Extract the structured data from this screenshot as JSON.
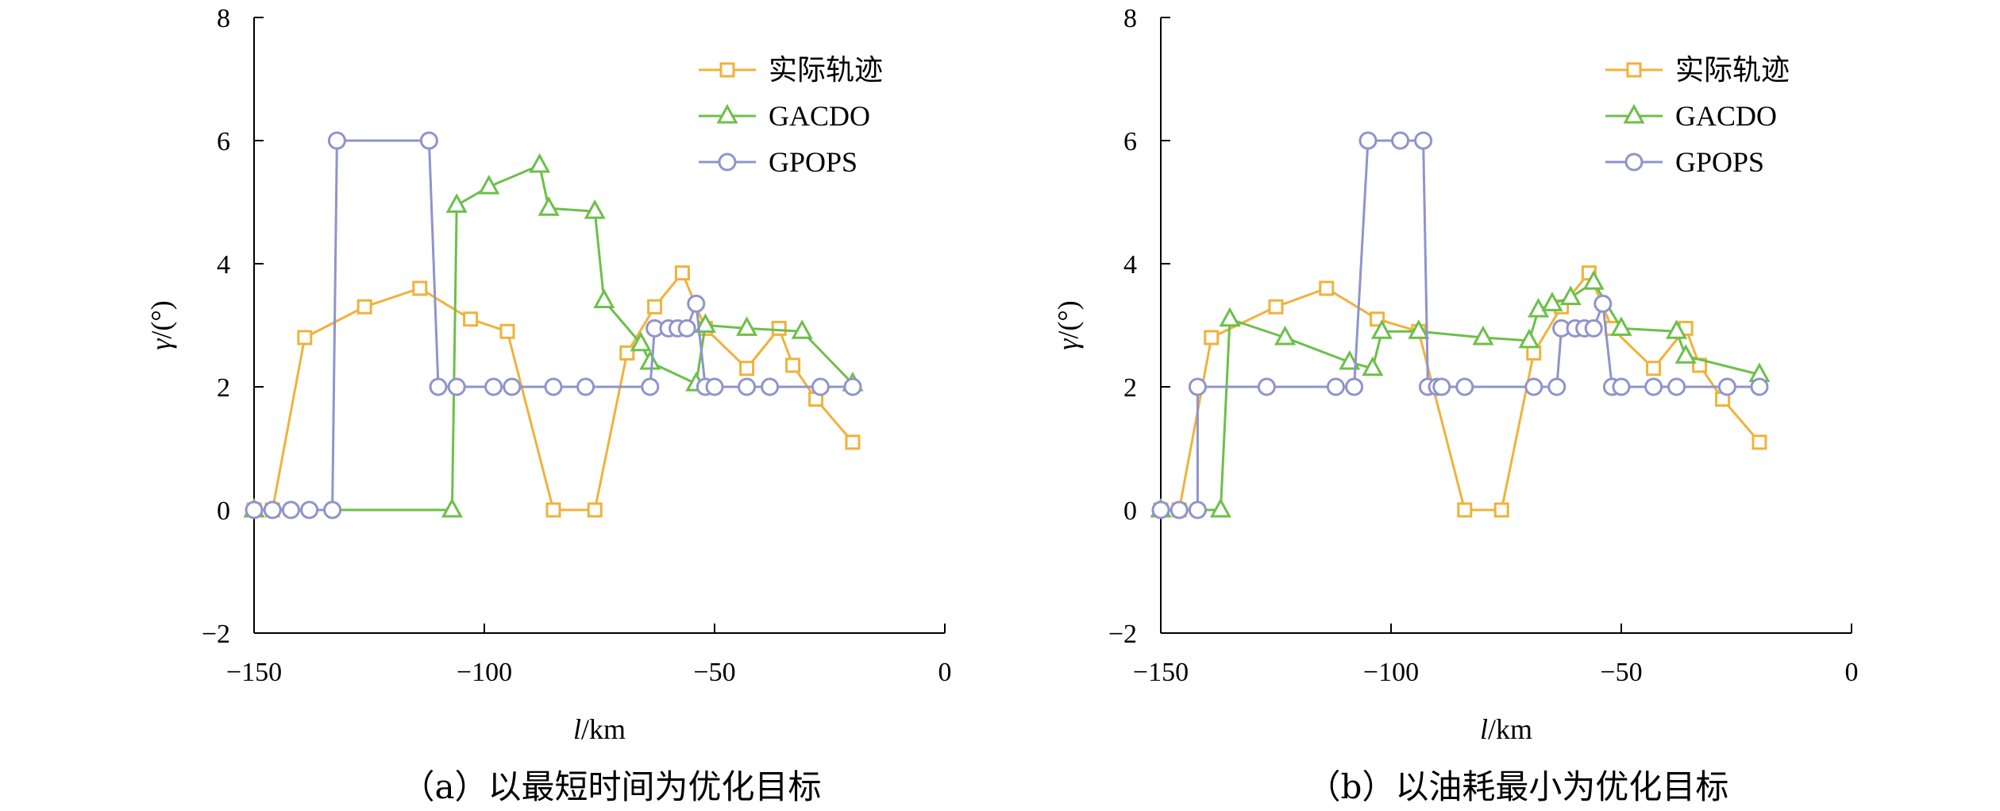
{
  "colors": {
    "actual": "#f0b23c",
    "gacdo": "#6dbf4b",
    "gpops": "#8f94cc"
  },
  "panels": [
    {
      "caption": "（a）以最短时间为优化目标",
      "xlabel_var": "l",
      "xlabel_unit": "/km",
      "ylabel_var": "γ",
      "ylabel_unit": "/(°)"
    },
    {
      "caption": "（b）以油耗最小为优化目标",
      "xlabel_var": "l",
      "xlabel_unit": "/km",
      "ylabel_var": "γ",
      "ylabel_unit": "/(°)"
    }
  ],
  "chart_data": [
    {
      "type": "line",
      "xlim": [
        -150,
        0
      ],
      "ylim": [
        -2,
        8
      ],
      "xticks": [
        -150,
        -100,
        -50,
        0
      ],
      "yticks": [
        -2,
        0,
        2,
        4,
        6,
        8
      ],
      "xtick_labels": [
        "−150",
        "−100",
        "−50",
        "0"
      ],
      "ytick_labels": [
        "−2",
        "0",
        "2",
        "4",
        "6",
        "8"
      ],
      "legend_position": "top-right",
      "grid": false,
      "series": [
        {
          "name": "实际轨迹",
          "marker": "square",
          "x": [
            -150,
            -146,
            -139,
            -126,
            -114,
            -103,
            -95,
            -85,
            -76,
            -69,
            -63,
            -57,
            -52,
            -43,
            -36,
            -33,
            -28,
            -20
          ],
          "y": [
            0,
            0,
            2.8,
            3.3,
            3.6,
            3.1,
            2.9,
            0,
            0,
            2.55,
            3.3,
            3.85,
            2.95,
            2.3,
            2.95,
            2.35,
            1.8,
            1.1
          ]
        },
        {
          "name": "GACDO",
          "marker": "triangle",
          "x": [
            -150,
            -107,
            -106,
            -99,
            -88,
            -86,
            -76,
            -74,
            -66,
            -64,
            -54,
            -52,
            -43,
            -31,
            -20
          ],
          "y": [
            0,
            0,
            4.95,
            5.25,
            5.6,
            4.9,
            4.85,
            3.4,
            2.7,
            2.4,
            2.05,
            3.0,
            2.95,
            2.9,
            2.05
          ]
        },
        {
          "name": "GPOPS",
          "marker": "circle",
          "x": [
            -150,
            -146,
            -142,
            -138,
            -133,
            -132,
            -112,
            -110,
            -106,
            -98,
            -94,
            -85,
            -78,
            -64,
            -63,
            -60,
            -58,
            -56,
            -54,
            -52,
            -50,
            -43,
            -38,
            -27,
            -20
          ],
          "y": [
            0,
            0,
            0,
            0,
            0,
            6,
            6,
            2,
            2,
            2,
            2,
            2,
            2,
            2,
            2.95,
            2.95,
            2.95,
            2.95,
            3.35,
            2,
            2,
            2,
            2,
            2,
            2
          ]
        }
      ]
    },
    {
      "type": "line",
      "xlim": [
        -150,
        0
      ],
      "ylim": [
        -2,
        8
      ],
      "xticks": [
        -150,
        -100,
        -50,
        0
      ],
      "yticks": [
        -2,
        0,
        2,
        4,
        6,
        8
      ],
      "xtick_labels": [
        "−150",
        "−100",
        "−50",
        "0"
      ],
      "ytick_labels": [
        "−2",
        "0",
        "2",
        "4",
        "6",
        "8"
      ],
      "legend_position": "top-right",
      "grid": false,
      "series": [
        {
          "name": "实际轨迹",
          "marker": "square",
          "x": [
            -150,
            -146,
            -139,
            -125,
            -114,
            -103,
            -94,
            -84,
            -76,
            -69,
            -63,
            -57,
            -52,
            -43,
            -36,
            -33,
            -28,
            -20
          ],
          "y": [
            0,
            0,
            2.8,
            3.3,
            3.6,
            3.1,
            2.9,
            0,
            0,
            2.55,
            3.3,
            3.85,
            2.95,
            2.3,
            2.95,
            2.35,
            1.8,
            1.1
          ]
        },
        {
          "name": "GACDO",
          "marker": "triangle",
          "x": [
            -150,
            -137,
            -135,
            -123,
            -109,
            -104,
            -102,
            -94,
            -80,
            -70,
            -68,
            -65,
            -61,
            -56,
            -50,
            -38,
            -36,
            -20
          ],
          "y": [
            0,
            0,
            3.1,
            2.8,
            2.4,
            2.3,
            2.9,
            2.9,
            2.8,
            2.75,
            3.25,
            3.35,
            3.45,
            3.7,
            2.95,
            2.9,
            2.5,
            2.2
          ]
        },
        {
          "name": "GPOPS",
          "marker": "circle",
          "x": [
            -150,
            -146,
            -142,
            -142,
            -127,
            -112,
            -108,
            -105,
            -98,
            -93,
            -92,
            -90,
            -89,
            -84,
            -69,
            -64,
            -63,
            -60,
            -58,
            -56,
            -54,
            -52,
            -50,
            -43,
            -38,
            -27,
            -20
          ],
          "y": [
            0,
            0,
            0,
            2,
            2,
            2,
            2,
            6,
            6,
            6,
            2,
            2,
            2,
            2,
            2,
            2,
            2.95,
            2.95,
            2.95,
            2.95,
            3.35,
            2,
            2,
            2,
            2,
            2,
            2
          ]
        }
      ]
    }
  ]
}
